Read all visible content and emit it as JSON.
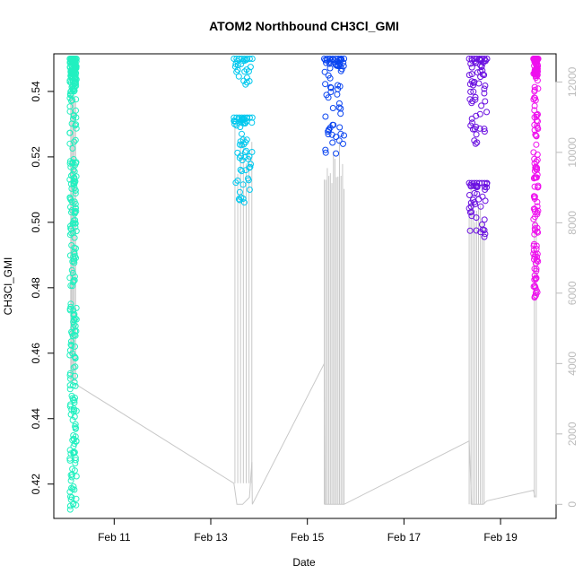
{
  "chart_data": {
    "type": "scatter",
    "title": "ATOM2 Northbound CH3Cl_GMI",
    "xlabel": "Date",
    "ylabel": "CH3Cl_GMI",
    "x_tick_labels": [
      "Feb 11",
      "Feb 13",
      "Feb 15",
      "Feb 17",
      "Feb 19"
    ],
    "x_tick_days": [
      11,
      13,
      15,
      17,
      19
    ],
    "xlim_days": [
      9.75,
      20.15
    ],
    "ylim": [
      0.4095,
      0.5515
    ],
    "y_ticks": [
      0.42,
      0.44,
      0.46,
      0.48,
      0.5,
      0.52,
      0.54
    ],
    "y2_ticks": [
      0,
      2000,
      4000,
      6000,
      8000,
      10000,
      12000
    ],
    "y2lim": [
      -400,
      12800
    ],
    "colors": {
      "axis": "#000000",
      "secondary_axis": "#bbbbbb",
      "altitude_line": "#c8c8c8"
    },
    "series": [
      {
        "color": "#22f0c0",
        "x_range": [
          10.08,
          10.22
        ],
        "y_blocks": [
          [
            0.412,
            0.55
          ]
        ]
      },
      {
        "color": "#00c8ee",
        "x_range": [
          13.48,
          13.86
        ],
        "y_blocks": [
          [
            0.506,
            0.532
          ],
          [
            0.542,
            0.55
          ]
        ]
      },
      {
        "color": "#0a44f0",
        "x_range": [
          15.35,
          15.76
        ],
        "y_blocks": [
          [
            0.521,
            0.55
          ]
        ]
      },
      {
        "color": "#6a10e0",
        "x_range": [
          18.35,
          18.72
        ],
        "y_blocks": [
          [
            0.524,
            0.55
          ],
          [
            0.495,
            0.512
          ]
        ]
      },
      {
        "color": "#ee10ee",
        "x_range": [
          19.68,
          19.78
        ],
        "y_blocks": [
          [
            0.477,
            0.55
          ]
        ]
      }
    ],
    "altitude_path": [
      [
        10.1,
        12000
      ],
      [
        10.12,
        3500
      ],
      [
        10.22,
        3400
      ],
      [
        13.48,
        600
      ],
      [
        13.54,
        0
      ],
      [
        13.66,
        0
      ],
      [
        13.8,
        200
      ],
      [
        13.85,
        1200
      ],
      [
        13.86,
        0
      ],
      [
        15.35,
        4000
      ],
      [
        15.36,
        0
      ],
      [
        15.76,
        0
      ],
      [
        18.35,
        1800
      ],
      [
        18.4,
        0
      ],
      [
        18.64,
        0
      ],
      [
        18.72,
        100
      ],
      [
        19.68,
        400
      ],
      [
        19.72,
        200
      ]
    ],
    "altitude_spikes": [
      [
        13.5,
        13.85,
        600,
        10800,
        7
      ],
      [
        15.35,
        15.76,
        0,
        10400,
        14
      ],
      [
        18.35,
        18.66,
        0,
        9300,
        9
      ],
      [
        19.7,
        19.74,
        200,
        8500,
        2
      ],
      [
        10.1,
        10.2,
        3500,
        12000,
        5
      ]
    ]
  }
}
